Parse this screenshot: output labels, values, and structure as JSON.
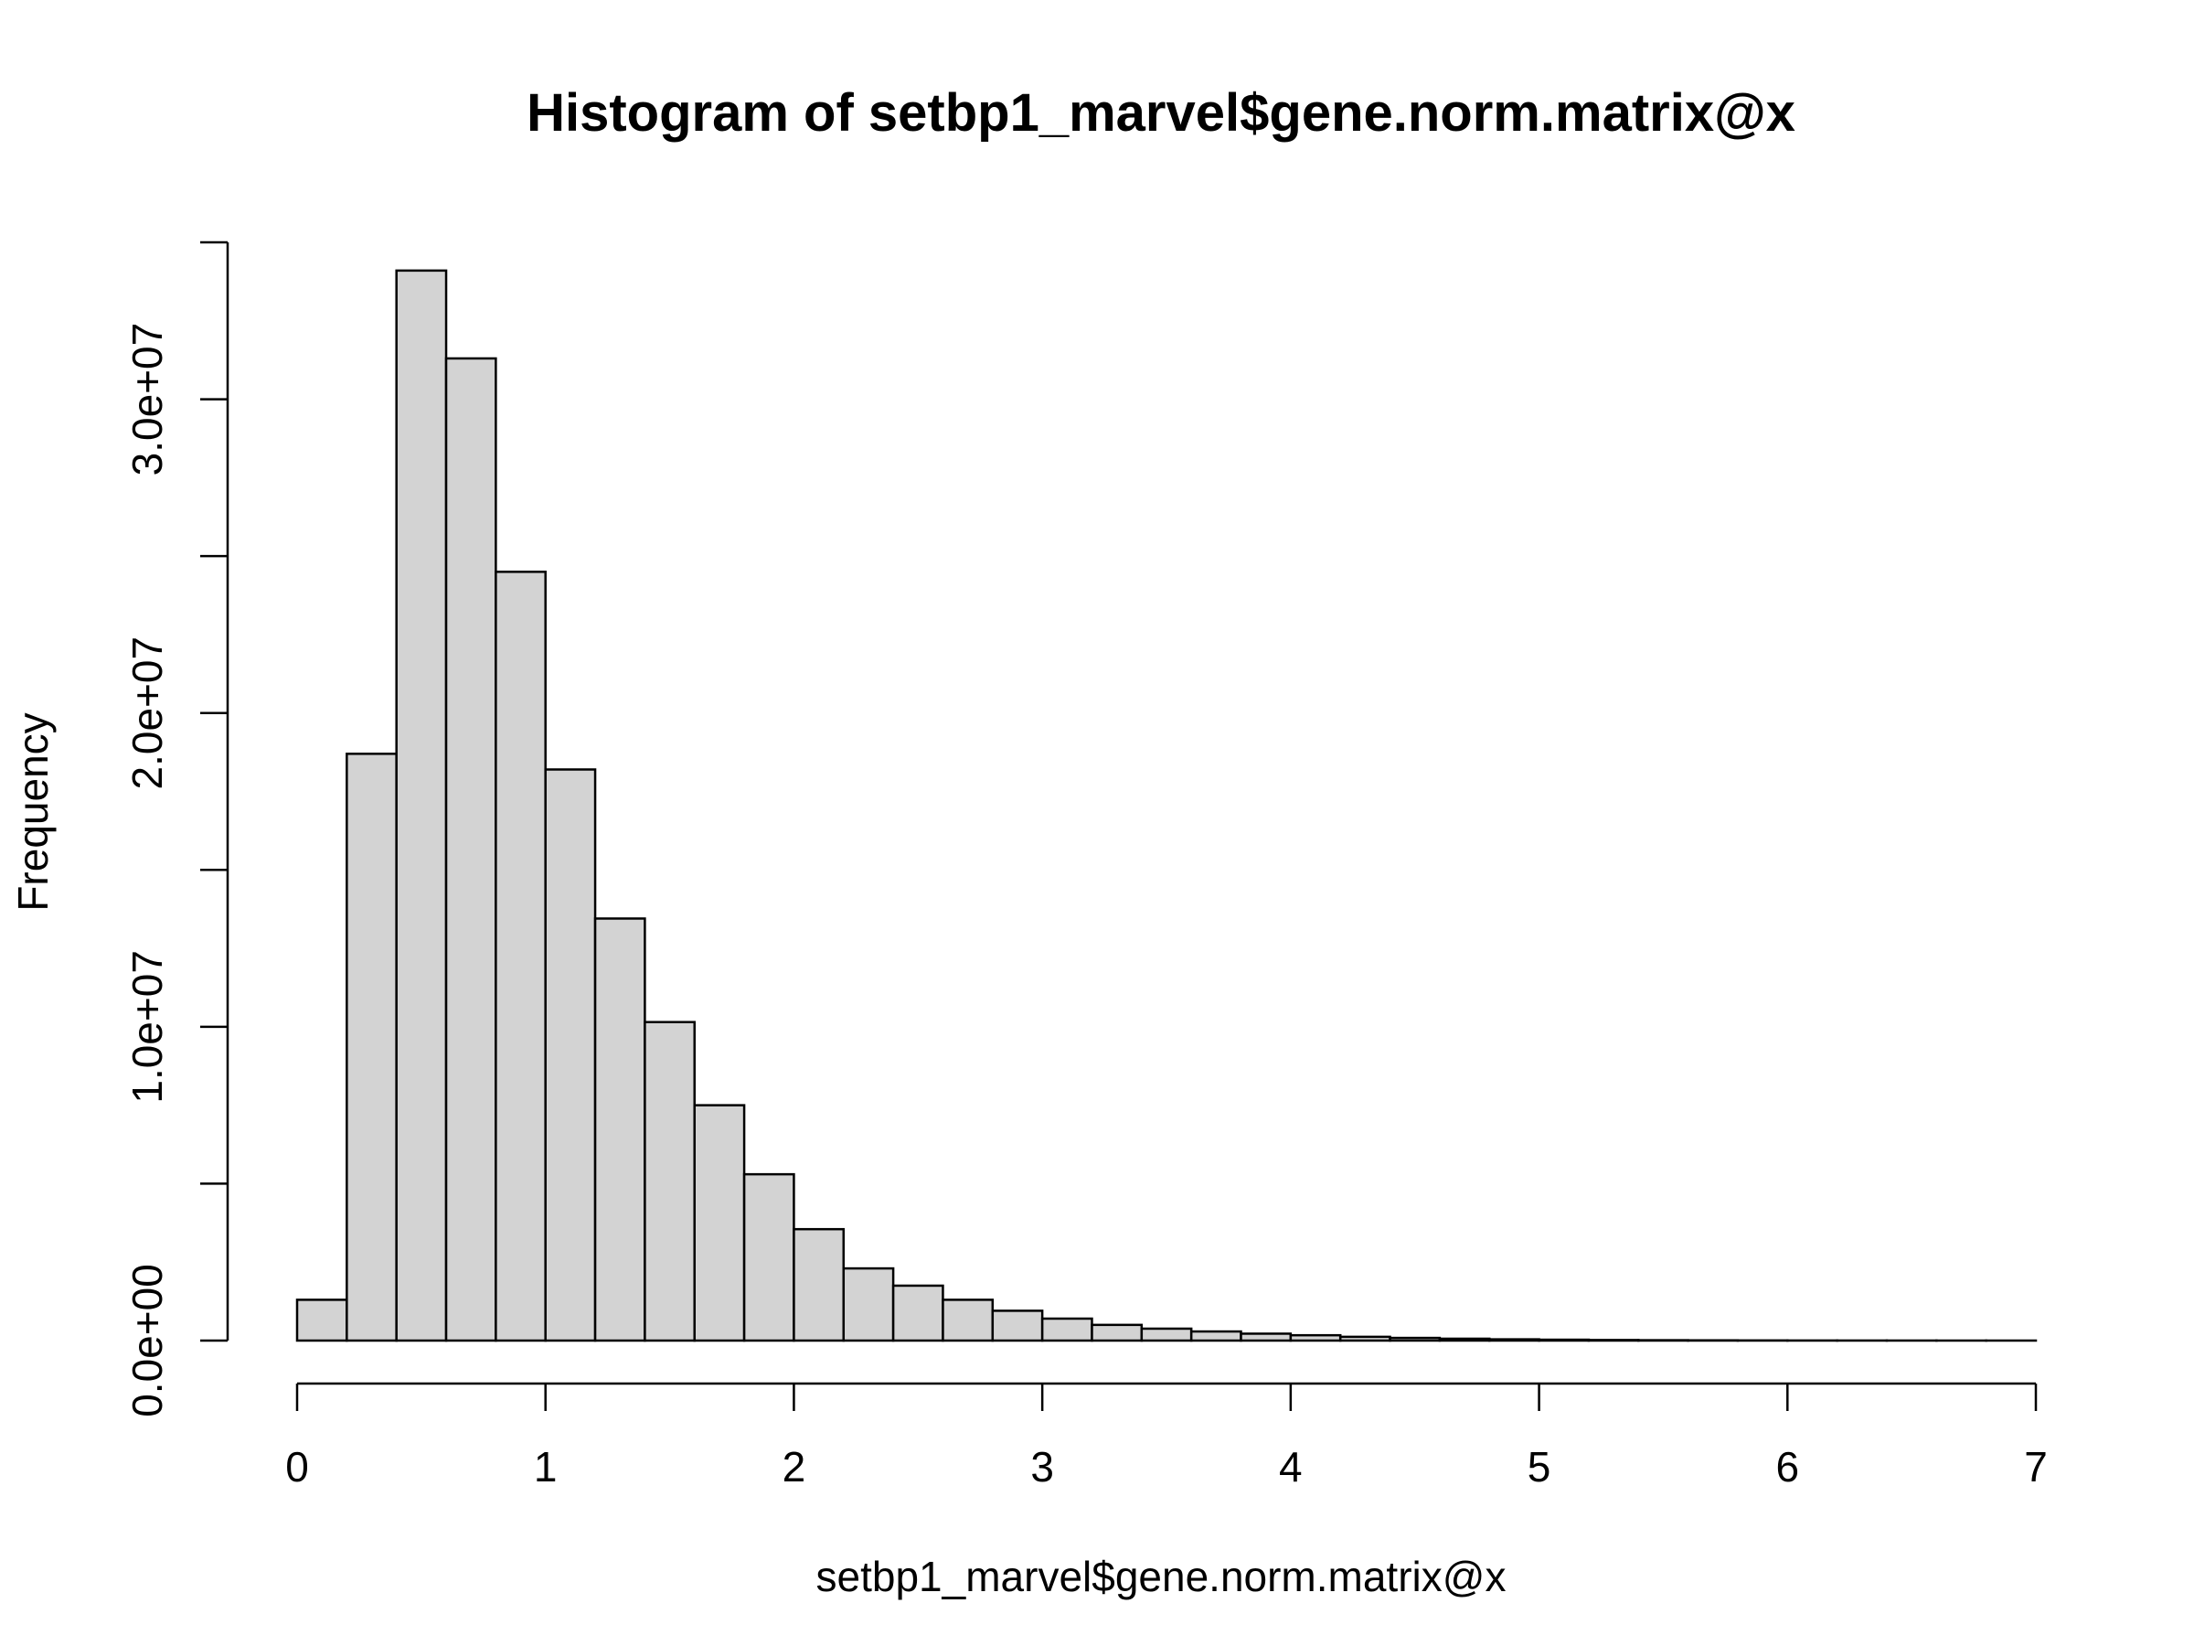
{
  "chart_data": {
    "type": "bar",
    "title": "Histogram of setbp1_marvel$gene.norm.matrix@x",
    "xlabel": "setbp1_marvel$gene.norm.matrix@x",
    "ylabel": "Frequency",
    "xlim": [
      0,
      7
    ],
    "ylim": [
      0,
      35000000
    ],
    "bin_width": 0.2,
    "x_ticks": [
      0,
      1,
      2,
      3,
      4,
      5,
      6,
      7
    ],
    "x_tick_labels": [
      "0",
      "1",
      "2",
      "3",
      "4",
      "5",
      "6",
      "7"
    ],
    "y_ticks": [
      0,
      5000000,
      10000000,
      15000000,
      20000000,
      25000000,
      30000000,
      35000000
    ],
    "y_tick_labels": [
      "0.0e+00",
      "",
      "1.0e+07",
      "",
      "2.0e+07",
      "",
      "3.0e+07",
      ""
    ],
    "bins": [
      {
        "x0": 0.0,
        "x1": 0.2,
        "value": 1300000
      },
      {
        "x0": 0.2,
        "x1": 0.4,
        "value": 18700000
      },
      {
        "x0": 0.4,
        "x1": 0.6,
        "value": 34100000
      },
      {
        "x0": 0.6,
        "x1": 0.8,
        "value": 31300000
      },
      {
        "x0": 0.8,
        "x1": 1.0,
        "value": 24500000
      },
      {
        "x0": 1.0,
        "x1": 1.2,
        "value": 18200000
      },
      {
        "x0": 1.2,
        "x1": 1.4,
        "value": 13450000
      },
      {
        "x0": 1.4,
        "x1": 1.6,
        "value": 10150000
      },
      {
        "x0": 1.6,
        "x1": 1.8,
        "value": 7500000
      },
      {
        "x0": 1.8,
        "x1": 2.0,
        "value": 5300000
      },
      {
        "x0": 2.0,
        "x1": 2.2,
        "value": 3550000
      },
      {
        "x0": 2.2,
        "x1": 2.4,
        "value": 2300000
      },
      {
        "x0": 2.4,
        "x1": 2.6,
        "value": 1750000
      },
      {
        "x0": 2.6,
        "x1": 2.8,
        "value": 1300000
      },
      {
        "x0": 2.8,
        "x1": 3.0,
        "value": 950000
      },
      {
        "x0": 3.0,
        "x1": 3.2,
        "value": 700000
      },
      {
        "x0": 3.2,
        "x1": 3.4,
        "value": 500000
      },
      {
        "x0": 3.4,
        "x1": 3.6,
        "value": 380000
      },
      {
        "x0": 3.6,
        "x1": 3.8,
        "value": 290000
      },
      {
        "x0": 3.8,
        "x1": 4.0,
        "value": 220000
      },
      {
        "x0": 4.0,
        "x1": 4.2,
        "value": 170000
      },
      {
        "x0": 4.2,
        "x1": 4.4,
        "value": 120000
      },
      {
        "x0": 4.4,
        "x1": 4.6,
        "value": 85000
      },
      {
        "x0": 4.6,
        "x1": 4.8,
        "value": 60000
      },
      {
        "x0": 4.8,
        "x1": 5.0,
        "value": 40000
      },
      {
        "x0": 5.0,
        "x1": 5.2,
        "value": 28000
      },
      {
        "x0": 5.2,
        "x1": 5.4,
        "value": 18000
      },
      {
        "x0": 5.4,
        "x1": 5.6,
        "value": 12000
      },
      {
        "x0": 5.6,
        "x1": 5.8,
        "value": 8000
      },
      {
        "x0": 5.8,
        "x1": 6.0,
        "value": 5000
      },
      {
        "x0": 6.0,
        "x1": 6.2,
        "value": 3000
      },
      {
        "x0": 6.2,
        "x1": 6.4,
        "value": 2000
      },
      {
        "x0": 6.4,
        "x1": 6.6,
        "value": 1200
      },
      {
        "x0": 6.6,
        "x1": 6.8,
        "value": 700
      },
      {
        "x0": 6.8,
        "x1": 7.0,
        "value": 400
      }
    ],
    "colors": {
      "bar_fill": "#d3d3d3",
      "bar_stroke": "#000000"
    },
    "grid": false
  }
}
